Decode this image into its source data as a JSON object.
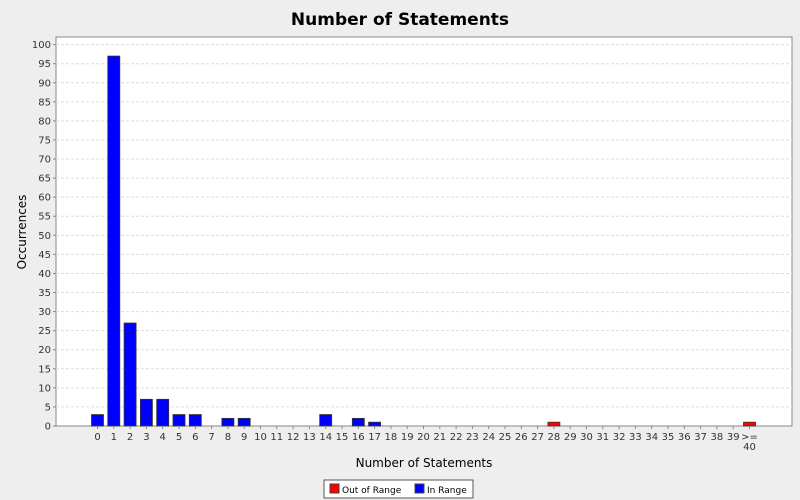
{
  "chart_data": {
    "type": "bar",
    "title": "Number of Statements",
    "xlabel": "Number of Statements",
    "ylabel": "Occurrences",
    "ylim": [
      0,
      102
    ],
    "yticks": [
      0,
      5,
      10,
      15,
      20,
      25,
      30,
      35,
      40,
      45,
      50,
      55,
      60,
      65,
      70,
      75,
      80,
      85,
      90,
      95,
      100
    ],
    "grid": true,
    "categories": [
      "0",
      "1",
      "2",
      "3",
      "4",
      "5",
      "6",
      "7",
      "8",
      "9",
      "10",
      "11",
      "12",
      "13",
      "14",
      "15",
      "16",
      "17",
      "18",
      "19",
      "20",
      "21",
      "22",
      "23",
      "24",
      "25",
      "26",
      "27",
      "28",
      "29",
      "30",
      "31",
      "32",
      "33",
      "34",
      "35",
      "36",
      "37",
      "38",
      "39",
      ">=\n40"
    ],
    "series": [
      {
        "name": "Out of Range",
        "color": "#ff0000",
        "values": [
          0,
          0,
          0,
          0,
          0,
          0,
          0,
          0,
          0,
          0,
          0,
          0,
          0,
          0,
          0,
          0,
          0,
          0,
          0,
          0,
          0,
          0,
          0,
          0,
          0,
          0,
          0,
          0,
          1,
          0,
          0,
          0,
          0,
          0,
          0,
          0,
          0,
          0,
          0,
          0,
          1
        ]
      },
      {
        "name": "In Range",
        "color": "#0000ff",
        "values": [
          3,
          97,
          27,
          7,
          7,
          3,
          3,
          0,
          2,
          2,
          0,
          0,
          0,
          0,
          3,
          0,
          2,
          1,
          0,
          0,
          0,
          0,
          0,
          0,
          0,
          0,
          0,
          0,
          0,
          0,
          0,
          0,
          0,
          0,
          0,
          0,
          0,
          0,
          0,
          0,
          0
        ]
      }
    ],
    "legend_position": "bottom-center"
  }
}
